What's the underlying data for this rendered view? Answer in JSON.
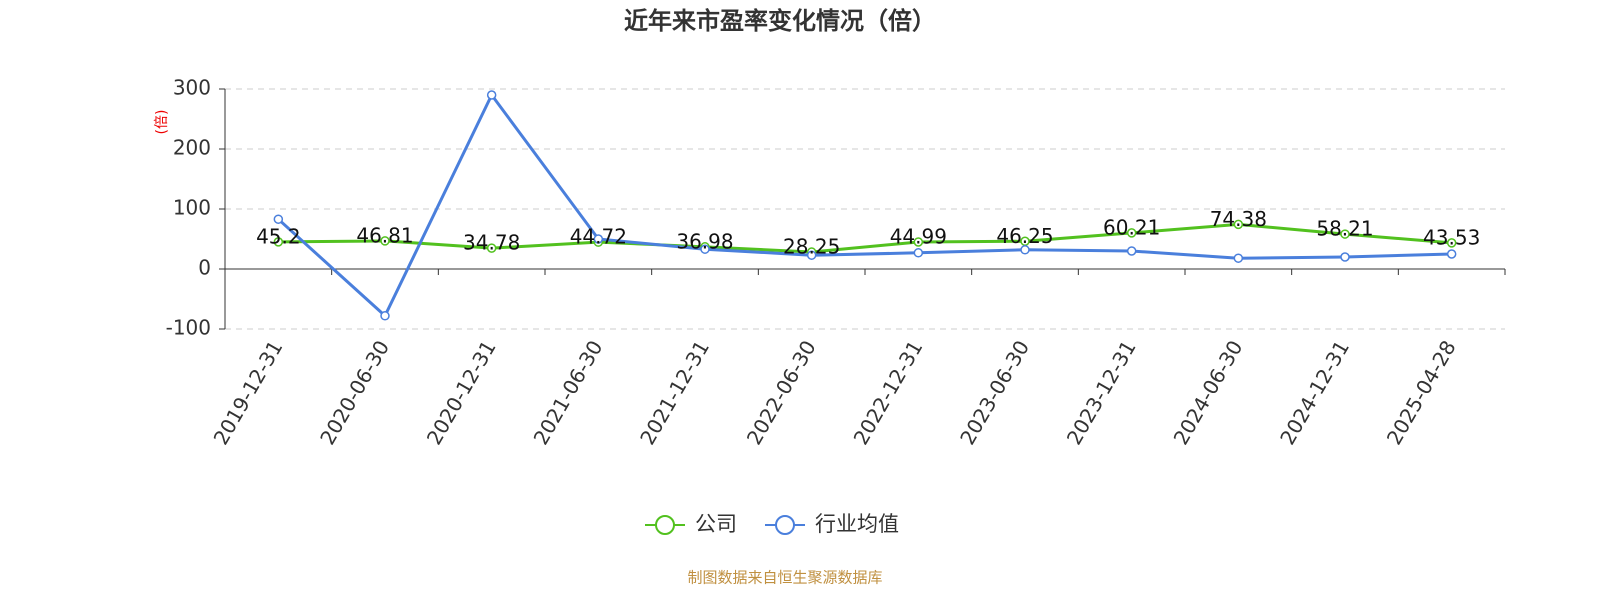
{
  "chart_data": {
    "type": "line",
    "title": "近年来市盈率变化情况（倍）",
    "y_label": "(倍)",
    "categories": [
      "2019-12-31",
      "2020-06-30",
      "2020-12-31",
      "2021-06-30",
      "2021-12-31",
      "2022-06-30",
      "2022-12-31",
      "2023-06-30",
      "2023-12-31",
      "2024-06-30",
      "2024-12-31",
      "2025-04-28"
    ],
    "series": [
      {
        "name": "公司",
        "color": "#52c11f",
        "values": [
          45.2,
          46.81,
          34.78,
          44.72,
          36.98,
          28.25,
          44.99,
          46.25,
          60.21,
          74.38,
          58.21,
          43.53
        ],
        "show_labels": true
      },
      {
        "name": "行业均值",
        "color": "#4a7fdc",
        "values": [
          83,
          -78,
          290,
          50,
          33,
          23,
          27,
          32,
          30,
          18,
          20,
          25
        ],
        "show_labels": false
      }
    ],
    "ylim": [
      -100,
      300
    ],
    "yticks": [
      -100,
      0,
      100,
      200,
      300
    ],
    "grid": true,
    "source": "制图数据来自恒生聚源数据库"
  }
}
